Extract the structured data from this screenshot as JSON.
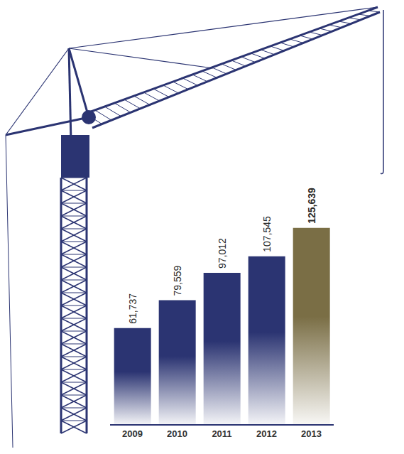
{
  "chart_data": {
    "type": "bar",
    "categories": [
      "2009",
      "2010",
      "2011",
      "2012",
      "2013"
    ],
    "values": [
      61737,
      79559,
      97012,
      107545,
      125639
    ],
    "value_labels": [
      "61,737",
      "79,559",
      "97,012",
      "107,545",
      "125,639"
    ],
    "colors": [
      "#2b3472",
      "#2b3472",
      "#2b3472",
      "#2b3472",
      "#7a6e45"
    ],
    "ylim": [
      0,
      150000
    ],
    "data_labels": true,
    "tick_labels": "x",
    "grid": false
  }
}
